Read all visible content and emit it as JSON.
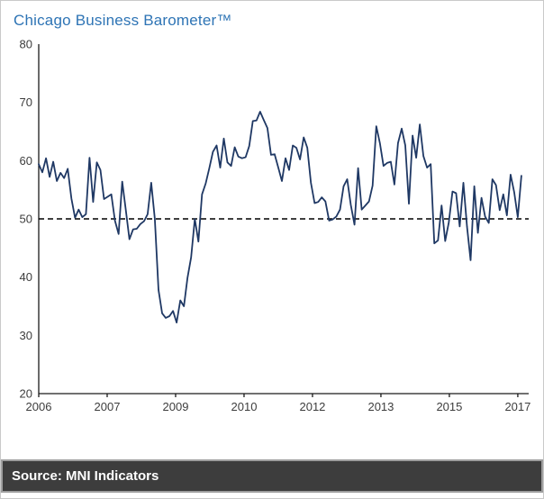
{
  "title": "Chicago Business Barometer™",
  "source_bar": {
    "label": "Source: MNI Indicators"
  },
  "colors": {
    "title": "#2E74B5",
    "line": "#1F3864",
    "axis": "#1a1a1a",
    "reference_line": "#000000",
    "source_bg": "#3d3d3d",
    "source_text": "#ffffff"
  },
  "chart_data": {
    "type": "line",
    "title": "Chicago Business Barometer™",
    "frequency": "monthly",
    "x_start_year": 2006.0,
    "x_axis_range": [
      2006.0,
      2017.25
    ],
    "ylim": [
      20,
      80
    ],
    "yticks": [
      20,
      30,
      40,
      50,
      60,
      70,
      80
    ],
    "xtick_labels": [
      "2006",
      "2007",
      "2009",
      "2010",
      "2012",
      "2013",
      "2015",
      "2017"
    ],
    "reference_line": 50,
    "grid": false,
    "legend": false,
    "series": [
      {
        "name": "Chicago Business Barometer",
        "color": "#1F3864",
        "values": [
          59.4,
          58.0,
          60.4,
          57.2,
          59.8,
          56.5,
          57.9,
          57.0,
          58.6,
          53.5,
          50.2,
          51.6,
          50.3,
          50.8,
          60.5,
          52.9,
          59.7,
          58.4,
          53.4,
          53.8,
          54.2,
          49.7,
          47.4,
          56.4,
          51.5,
          46.5,
          48.2,
          48.3,
          49.1,
          49.6,
          50.8,
          56.2,
          50.0,
          37.8,
          33.8,
          33.0,
          33.3,
          34.2,
          32.2,
          36.0,
          35.0,
          39.9,
          43.4,
          50.0,
          46.1,
          54.2,
          56.1,
          58.7,
          61.5,
          62.6,
          58.8,
          63.8,
          59.7,
          59.1,
          62.3,
          60.7,
          60.4,
          60.6,
          62.5,
          66.8,
          66.9,
          68.4,
          67.0,
          65.6,
          61.0,
          61.1,
          58.8,
          56.5,
          60.4,
          58.4,
          62.6,
          62.2,
          60.2,
          64.0,
          62.2,
          56.2,
          52.7,
          52.9,
          53.7,
          53.0,
          49.7,
          49.9,
          50.4,
          51.6,
          55.6,
          56.8,
          52.4,
          49.0,
          58.7,
          51.6,
          52.3,
          53.0,
          55.7,
          65.9,
          63.0,
          59.1,
          59.6,
          59.8,
          55.9,
          63.0,
          65.5,
          62.6,
          52.6,
          64.3,
          60.5,
          66.2,
          60.8,
          58.8,
          59.4,
          45.8,
          46.3,
          52.3,
          46.2,
          49.4,
          54.7,
          54.4,
          48.7,
          56.2,
          48.7,
          42.9,
          55.6,
          47.6,
          53.6,
          50.4,
          49.3,
          56.8,
          55.8,
          51.5,
          54.2,
          50.6,
          57.6,
          54.6,
          50.3,
          57.4
        ]
      }
    ]
  }
}
